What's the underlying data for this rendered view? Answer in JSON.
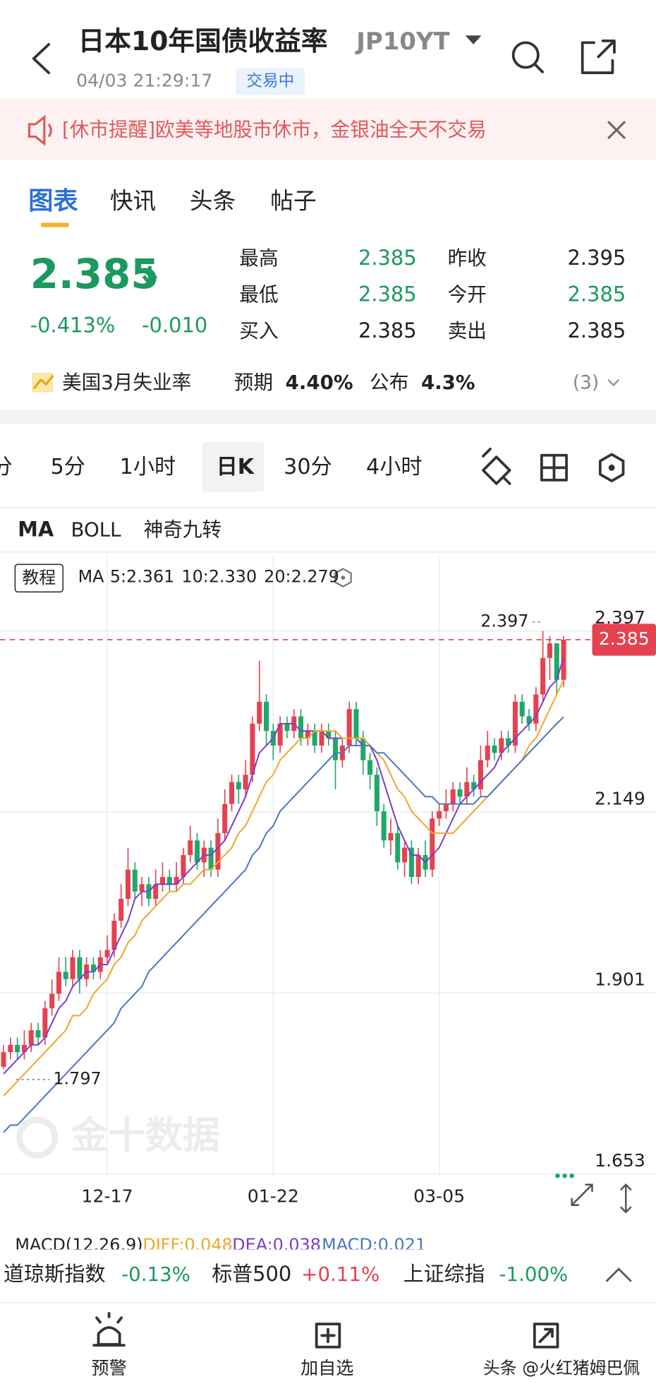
{
  "header": {
    "title": "日本10年国债收益率",
    "symbol": "JP10YT",
    "time": "04/03 21:29:17",
    "status": "交易中"
  },
  "notice": "[休市提醒]欧美等地股市休市，金银油全天不交易",
  "tabs": [
    "图表",
    "快讯",
    "头条",
    "帖子"
  ],
  "quote": {
    "price": "2.385",
    "change_pct": "-0.413%",
    "change": "-0.010",
    "stats": [
      [
        "最高",
        "2.385"
      ],
      [
        "最低",
        "2.385"
      ],
      [
        "买入",
        "2.385"
      ],
      [
        "昨收",
        "2.395"
      ],
      [
        "今开",
        "2.385"
      ],
      [
        "卖出",
        "2.385"
      ]
    ]
  },
  "event": {
    "name": "美国3月失业率",
    "expected_label": "预期",
    "expected": "4.40%",
    "actual_label": "公布",
    "actual": "4.3%",
    "count": "(3)"
  },
  "periods": [
    "分",
    "5分",
    "1小时",
    "日K",
    "30分",
    "4小时"
  ],
  "indicators": [
    "MA",
    "BOLL",
    "神奇九转"
  ],
  "chart_header": {
    "tutorial": "教程",
    "ma": "MA"
  },
  "watermark": "金十数据",
  "macd": {
    "label": "MACD(12,26,9)",
    "diff": "DIFF:0.048",
    "dea": "DEA:0.038",
    "macd": "MACD:0.021"
  },
  "ticker": [
    [
      "道琼斯指数",
      "-0.13%"
    ],
    [
      "标普500",
      "+0.11%"
    ],
    [
      "上证综指",
      "-1.00%"
    ]
  ],
  "bottom_nav": [
    "预警",
    "加自选"
  ],
  "overlay_watermark": "头条 @火红猪姆巴佩",
  "chart_data": {
    "type": "candlestick",
    "categories": [
      null,
      null,
      null,
      null,
      null,
      null,
      null,
      null,
      null,
      null,
      null,
      null,
      null,
      null,
      null,
      "12-17",
      null,
      null,
      null,
      null,
      null,
      null,
      null,
      null,
      null,
      null,
      null,
      null,
      null,
      null,
      null,
      null,
      null,
      null,
      null,
      null,
      null,
      null,
      null,
      "01-22",
      null,
      null,
      null,
      null,
      null,
      null,
      null,
      null,
      null,
      null,
      null,
      null,
      null,
      null,
      null,
      null,
      null,
      null,
      null,
      null,
      null,
      null,
      null,
      "03-05",
      null,
      null,
      null,
      null,
      null,
      null,
      null,
      null,
      null,
      null,
      null,
      null,
      null,
      null,
      null,
      null,
      null,
      null
    ],
    "open": [
      1.8,
      1.82,
      1.83,
      1.82,
      1.83,
      1.85,
      1.84,
      1.88,
      1.9,
      1.93,
      1.92,
      1.95,
      1.92,
      1.94,
      1.93,
      1.95,
      1.96,
      2.0,
      2.03,
      2.07,
      2.04,
      2.05,
      2.03,
      2.05,
      2.06,
      2.05,
      2.06,
      2.09,
      2.11,
      2.08,
      2.1,
      2.07,
      2.12,
      2.16,
      2.19,
      2.18,
      2.2,
      2.27,
      2.3,
      2.26,
      2.24,
      2.27,
      2.26,
      2.28,
      2.25,
      2.26,
      2.24,
      2.26,
      2.25,
      2.22,
      2.24,
      2.29,
      2.25,
      2.22,
      2.2,
      2.15,
      2.11,
      2.12,
      2.08,
      2.1,
      2.06,
      2.09,
      2.07,
      2.14,
      2.15,
      2.16,
      2.18,
      2.17,
      2.19,
      2.18,
      2.22,
      2.24,
      2.23,
      2.25,
      2.24,
      2.3,
      2.28,
      2.27,
      2.31,
      2.36,
      2.38,
      2.33
    ],
    "high": [
      1.83,
      1.84,
      1.84,
      1.85,
      1.86,
      1.86,
      1.89,
      1.92,
      1.95,
      1.95,
      1.96,
      1.96,
      1.95,
      1.95,
      1.96,
      1.98,
      2.01,
      2.05,
      2.1,
      2.08,
      2.06,
      2.06,
      2.07,
      2.08,
      2.07,
      2.08,
      2.1,
      2.13,
      2.12,
      2.11,
      2.11,
      2.14,
      2.18,
      2.2,
      2.2,
      2.22,
      2.28,
      2.356,
      2.31,
      2.27,
      2.28,
      2.28,
      2.29,
      2.29,
      2.27,
      2.27,
      2.27,
      2.27,
      2.26,
      2.25,
      2.3,
      2.3,
      2.26,
      2.23,
      2.21,
      2.16,
      2.14,
      2.13,
      2.11,
      2.11,
      2.1,
      2.11,
      2.15,
      2.16,
      2.18,
      2.19,
      2.19,
      2.21,
      2.2,
      2.24,
      2.26,
      2.25,
      2.26,
      2.26,
      2.31,
      2.31,
      2.29,
      2.32,
      2.397,
      2.39,
      2.38,
      2.39
    ],
    "low": [
      1.797,
      1.81,
      1.81,
      1.81,
      1.82,
      1.83,
      1.83,
      1.87,
      1.89,
      1.91,
      1.91,
      1.9,
      1.91,
      1.92,
      1.92,
      1.94,
      1.95,
      1.99,
      2.02,
      2.03,
      2.02,
      2.02,
      2.02,
      2.04,
      2.04,
      2.04,
      2.05,
      2.08,
      2.07,
      2.06,
      2.06,
      2.06,
      2.11,
      2.15,
      2.16,
      2.17,
      2.19,
      2.26,
      2.24,
      2.22,
      2.23,
      2.25,
      2.25,
      2.24,
      2.24,
      2.23,
      2.23,
      2.24,
      2.18,
      2.21,
      2.23,
      2.24,
      2.2,
      2.18,
      2.13,
      2.1,
      2.09,
      2.07,
      2.06,
      2.05,
      2.05,
      2.06,
      2.06,
      2.13,
      2.14,
      2.15,
      2.16,
      2.16,
      2.17,
      2.17,
      2.21,
      2.22,
      2.22,
      2.23,
      2.23,
      2.27,
      2.26,
      2.26,
      2.3,
      2.33,
      2.31,
      2.32
    ],
    "close": [
      1.82,
      1.83,
      1.82,
      1.83,
      1.85,
      1.84,
      1.88,
      1.9,
      1.93,
      1.92,
      1.95,
      1.92,
      1.94,
      1.93,
      1.95,
      1.96,
      2.0,
      2.03,
      2.07,
      2.04,
      2.05,
      2.03,
      2.05,
      2.06,
      2.05,
      2.06,
      2.09,
      2.11,
      2.08,
      2.1,
      2.07,
      2.12,
      2.16,
      2.19,
      2.18,
      2.2,
      2.27,
      2.3,
      2.26,
      2.24,
      2.27,
      2.26,
      2.28,
      2.25,
      2.26,
      2.24,
      2.26,
      2.25,
      2.22,
      2.24,
      2.29,
      2.25,
      2.22,
      2.2,
      2.15,
      2.11,
      2.12,
      2.08,
      2.1,
      2.06,
      2.09,
      2.07,
      2.14,
      2.15,
      2.16,
      2.18,
      2.17,
      2.19,
      2.18,
      2.22,
      2.24,
      2.23,
      2.25,
      2.24,
      2.3,
      2.28,
      2.27,
      2.31,
      2.36,
      2.38,
      2.33,
      2.385
    ],
    "up_color": "#e5414f",
    "down_color": "#1fa86a",
    "lines": [
      {
        "label": "5:2.361",
        "color": "#7b3fc8",
        "values": [
          1.79,
          1.8,
          1.81,
          1.82,
          1.83,
          1.83,
          1.84,
          1.86,
          1.88,
          1.89,
          1.91,
          1.92,
          1.93,
          1.93,
          1.94,
          1.94,
          1.96,
          1.98,
          2.0,
          2.03,
          2.04,
          2.04,
          2.05,
          2.05,
          2.05,
          2.05,
          2.06,
          2.07,
          2.08,
          2.09,
          2.09,
          2.1,
          2.11,
          2.13,
          2.15,
          2.17,
          2.2,
          2.23,
          2.24,
          2.25,
          2.27,
          2.27,
          2.27,
          2.26,
          2.26,
          2.26,
          2.26,
          2.25,
          2.25,
          2.25,
          2.25,
          2.25,
          2.24,
          2.24,
          2.22,
          2.19,
          2.16,
          2.13,
          2.11,
          2.09,
          2.09,
          2.08,
          2.09,
          2.1,
          2.12,
          2.14,
          2.16,
          2.17,
          2.18,
          2.19,
          2.2,
          2.21,
          2.23,
          2.24,
          2.25,
          2.26,
          2.27,
          2.28,
          2.3,
          2.32,
          2.33,
          2.361
        ]
      },
      {
        "label": "10:2.330",
        "color": "#eea92a",
        "values": [
          1.76,
          1.77,
          1.78,
          1.79,
          1.8,
          1.81,
          1.82,
          1.83,
          1.84,
          1.85,
          1.87,
          1.87,
          1.88,
          1.9,
          1.91,
          1.92,
          1.94,
          1.95,
          1.97,
          1.98,
          2.0,
          2.01,
          2.02,
          2.03,
          2.04,
          2.04,
          2.05,
          2.05,
          2.06,
          2.07,
          2.07,
          2.08,
          2.09,
          2.1,
          2.12,
          2.13,
          2.15,
          2.17,
          2.19,
          2.2,
          2.22,
          2.23,
          2.24,
          2.25,
          2.25,
          2.26,
          2.26,
          2.26,
          2.26,
          2.25,
          2.25,
          2.25,
          2.25,
          2.24,
          2.23,
          2.22,
          2.2,
          2.18,
          2.17,
          2.15,
          2.14,
          2.13,
          2.12,
          2.12,
          2.12,
          2.12,
          2.13,
          2.14,
          2.15,
          2.16,
          2.17,
          2.18,
          2.19,
          2.2,
          2.21,
          2.22,
          2.24,
          2.25,
          2.27,
          2.29,
          2.31,
          2.33
        ]
      },
      {
        "label": "20:2.279",
        "color": "#4a78c2",
        "values": [
          1.71,
          1.72,
          1.72,
          1.73,
          1.74,
          1.75,
          1.76,
          1.77,
          1.78,
          1.79,
          1.8,
          1.81,
          1.82,
          1.83,
          1.84,
          1.85,
          1.86,
          1.88,
          1.89,
          1.9,
          1.91,
          1.93,
          1.94,
          1.95,
          1.96,
          1.97,
          1.98,
          1.99,
          2.0,
          2.01,
          2.02,
          2.03,
          2.04,
          2.05,
          2.06,
          2.07,
          2.09,
          2.1,
          2.12,
          2.13,
          2.15,
          2.16,
          2.17,
          2.18,
          2.19,
          2.2,
          2.21,
          2.22,
          2.23,
          2.23,
          2.24,
          2.24,
          2.24,
          2.24,
          2.23,
          2.23,
          2.22,
          2.21,
          2.2,
          2.19,
          2.18,
          2.17,
          2.17,
          2.16,
          2.16,
          2.16,
          2.16,
          2.16,
          2.16,
          2.17,
          2.17,
          2.18,
          2.19,
          2.2,
          2.21,
          2.22,
          2.23,
          2.24,
          2.25,
          2.26,
          2.27,
          2.279
        ]
      }
    ],
    "high_label": 2.397,
    "low_label": 1.797,
    "last_price": 2.385,
    "ylim": [
      1.653,
      2.397
    ],
    "yticks": [
      1.653,
      1.901,
      2.149,
      2.397
    ],
    "grid": true
  }
}
